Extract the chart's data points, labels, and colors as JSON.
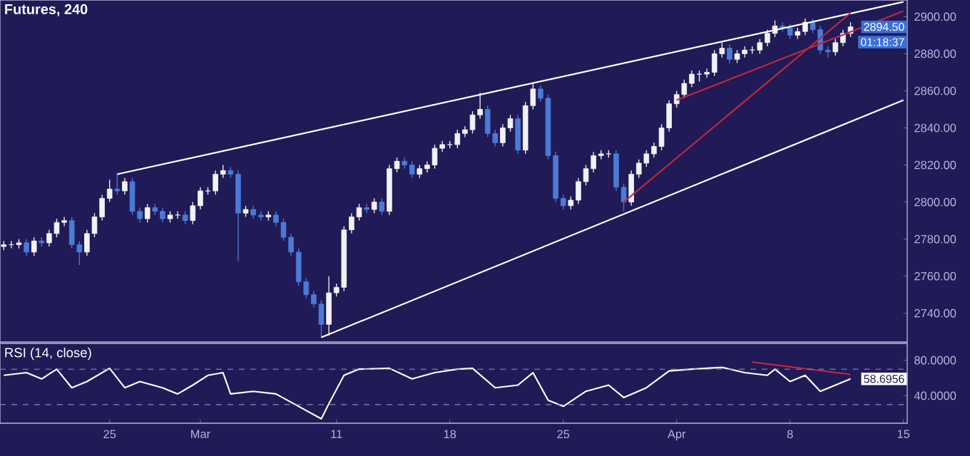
{
  "chart_data": [
    {
      "type": "candlestick",
      "title": "Futures, 240",
      "categories": [
        null,
        null,
        null,
        null,
        null,
        null,
        null,
        null,
        null,
        null,
        null,
        null,
        null,
        null,
        null,
        null,
        null,
        null,
        null,
        null,
        null,
        null,
        null,
        null,
        null,
        null,
        null,
        null,
        null,
        null,
        null,
        null,
        null,
        null,
        null,
        null,
        null,
        null,
        null,
        null,
        null,
        null,
        null,
        null,
        null,
        null,
        null,
        null,
        null,
        null,
        null,
        null,
        null,
        null,
        null,
        null,
        null,
        null,
        null,
        null,
        null,
        null,
        null,
        null,
        null,
        null,
        null,
        null,
        null,
        null,
        null,
        null,
        null,
        null,
        null,
        null,
        null,
        null,
        null,
        null,
        null,
        null,
        null,
        null,
        null,
        null,
        null,
        null,
        null,
        null,
        null,
        null,
        null,
        null,
        null,
        null,
        null,
        null,
        null,
        null,
        null,
        null,
        null,
        null,
        null,
        null,
        null,
        null,
        null,
        null,
        null,
        null,
        null,
        null,
        null,
        null,
        null,
        null,
        null,
        null
      ],
      "ohlc": [
        [
          2776,
          2779,
          2774,
          2777
        ],
        [
          2777,
          2779,
          2775,
          2777
        ],
        [
          2777,
          2780,
          2775,
          2778
        ],
        [
          2778,
          2780,
          2771,
          2773
        ],
        [
          2773,
          2781,
          2771,
          2779
        ],
        [
          2779,
          2781,
          2776,
          2778
        ],
        [
          2778,
          2785,
          2776,
          2783
        ],
        [
          2783,
          2791,
          2781,
          2789
        ],
        [
          2789,
          2792,
          2787,
          2790
        ],
        [
          2790,
          2792,
          2775,
          2777
        ],
        [
          2777,
          2779,
          2766,
          2773
        ],
        [
          2773,
          2785,
          2771,
          2783
        ],
        [
          2783,
          2794,
          2781,
          2792
        ],
        [
          2792,
          2804,
          2790,
          2802
        ],
        [
          2802,
          2812,
          2800,
          2807
        ],
        [
          2807,
          2815,
          2804,
          2806
        ],
        [
          2806,
          2813,
          2804,
          2811
        ],
        [
          2811,
          2813,
          2793,
          2795
        ],
        [
          2795,
          2797,
          2789,
          2791
        ],
        [
          2791,
          2799,
          2789,
          2797
        ],
        [
          2797,
          2799,
          2793,
          2795
        ],
        [
          2795,
          2797,
          2789,
          2791
        ],
        [
          2791,
          2795,
          2789,
          2793
        ],
        [
          2793,
          2795,
          2791,
          2793
        ],
        [
          2793,
          2795,
          2788,
          2790
        ],
        [
          2790,
          2800,
          2788,
          2798
        ],
        [
          2798,
          2808,
          2796,
          2806
        ],
        [
          2806,
          2808,
          2804,
          2806
        ],
        [
          2806,
          2817,
          2804,
          2815
        ],
        [
          2815,
          2820,
          2813,
          2817
        ],
        [
          2817,
          2819,
          2813,
          2815
        ],
        [
          2815,
          2817,
          2768,
          2794
        ],
        [
          2794,
          2798,
          2792,
          2796
        ],
        [
          2796,
          2798,
          2791,
          2793
        ],
        [
          2793,
          2795,
          2790,
          2792
        ],
        [
          2792,
          2795,
          2790,
          2793
        ],
        [
          2793,
          2795,
          2787,
          2789
        ],
        [
          2789,
          2791,
          2779,
          2781
        ],
        [
          2781,
          2783,
          2771,
          2773
        ],
        [
          2773,
          2775,
          2755,
          2757
        ],
        [
          2757,
          2759,
          2748,
          2750
        ],
        [
          2750,
          2752,
          2743,
          2745
        ],
        [
          2745,
          2747,
          2727,
          2734
        ],
        [
          2734,
          2760,
          2728,
          2751
        ],
        [
          2751,
          2756,
          2749,
          2754
        ],
        [
          2754,
          2787,
          2752,
          2785
        ],
        [
          2785,
          2794,
          2783,
          2792
        ],
        [
          2792,
          2799,
          2790,
          2797
        ],
        [
          2797,
          2799,
          2794,
          2796
        ],
        [
          2796,
          2802,
          2794,
          2800
        ],
        [
          2800,
          2802,
          2793,
          2795
        ],
        [
          2795,
          2820,
          2793,
          2818
        ],
        [
          2818,
          2824,
          2816,
          2822
        ],
        [
          2822,
          2824,
          2818,
          2820
        ],
        [
          2820,
          2822,
          2813,
          2815
        ],
        [
          2815,
          2820,
          2813,
          2818
        ],
        [
          2818,
          2822,
          2816,
          2820
        ],
        [
          2820,
          2831,
          2818,
          2829
        ],
        [
          2829,
          2833,
          2827,
          2831
        ],
        [
          2831,
          2833,
          2829,
          2831
        ],
        [
          2831,
          2839,
          2829,
          2837
        ],
        [
          2837,
          2841,
          2835,
          2839
        ],
        [
          2839,
          2849,
          2837,
          2847
        ],
        [
          2847,
          2859,
          2845,
          2850
        ],
        [
          2850,
          2852,
          2835,
          2837
        ],
        [
          2837,
          2839,
          2830,
          2832
        ],
        [
          2832,
          2842,
          2830,
          2840
        ],
        [
          2840,
          2847,
          2838,
          2845
        ],
        [
          2845,
          2847,
          2826,
          2828
        ],
        [
          2828,
          2854,
          2826,
          2852
        ],
        [
          2852,
          2864,
          2850,
          2861
        ],
        [
          2861,
          2863,
          2854,
          2856
        ],
        [
          2856,
          2858,
          2823,
          2825
        ],
        [
          2825,
          2827,
          2800,
          2802
        ],
        [
          2802,
          2804,
          2796,
          2798
        ],
        [
          2798,
          2803,
          2796,
          2801
        ],
        [
          2801,
          2813,
          2799,
          2811
        ],
        [
          2811,
          2820,
          2809,
          2818
        ],
        [
          2818,
          2827,
          2816,
          2825
        ],
        [
          2825,
          2828,
          2823,
          2826
        ],
        [
          2826,
          2828,
          2824,
          2826
        ],
        [
          2826,
          2828,
          2806,
          2808
        ],
        [
          2808,
          2810,
          2795,
          2800
        ],
        [
          2800,
          2817,
          2798,
          2815
        ],
        [
          2815,
          2823,
          2813,
          2821
        ],
        [
          2821,
          2828,
          2819,
          2826
        ],
        [
          2826,
          2832,
          2824,
          2830
        ],
        [
          2830,
          2842,
          2828,
          2840
        ],
        [
          2840,
          2855,
          2838,
          2853
        ],
        [
          2853,
          2860,
          2851,
          2858
        ],
        [
          2858,
          2866,
          2856,
          2864
        ],
        [
          2864,
          2871,
          2862,
          2869
        ],
        [
          2869,
          2871,
          2865,
          2869
        ],
        [
          2869,
          2872,
          2867,
          2870
        ],
        [
          2870,
          2882,
          2868,
          2880
        ],
        [
          2880,
          2886,
          2878,
          2883
        ],
        [
          2883,
          2885,
          2875,
          2877
        ],
        [
          2877,
          2882,
          2875,
          2880
        ],
        [
          2880,
          2884,
          2878,
          2882
        ],
        [
          2882,
          2884,
          2880,
          2882
        ],
        [
          2882,
          2888,
          2880,
          2886
        ],
        [
          2886,
          2893,
          2884,
          2891
        ],
        [
          2891,
          2898,
          2889,
          2895
        ],
        [
          2895,
          2897,
          2892,
          2894
        ],
        [
          2894,
          2896,
          2888,
          2890
        ],
        [
          2890,
          2894,
          2888,
          2892
        ],
        [
          2892,
          2899,
          2890,
          2897
        ],
        [
          2897,
          2899,
          2891,
          2893
        ],
        [
          2893,
          2895,
          2880,
          2882
        ],
        [
          2882,
          2884,
          2878,
          2881
        ],
        [
          2881,
          2888,
          2879,
          2886
        ],
        [
          2886,
          2893,
          2884,
          2891
        ],
        [
          2891,
          2897,
          2889,
          2894.5
        ],
        null,
        null,
        null,
        null,
        null,
        null,
        null
      ],
      "series": [
        {
          "type": "line",
          "color": "#ffffff",
          "values": [
            null,
            null,
            null,
            null,
            null,
            null,
            null,
            null,
            null,
            null,
            null,
            null,
            null,
            null,
            null,
            2815,
            null,
            null,
            null,
            null,
            null,
            null,
            null,
            null,
            null,
            null,
            null,
            null,
            null,
            null,
            null,
            null,
            null,
            null,
            null,
            null,
            null,
            null,
            null,
            null,
            null,
            null,
            null,
            null,
            null,
            null,
            null,
            null,
            null,
            null,
            null,
            null,
            null,
            null,
            null,
            null,
            null,
            null,
            null,
            null,
            null,
            null,
            null,
            null,
            null,
            null,
            null,
            null,
            null,
            null,
            null,
            null,
            null,
            null,
            null,
            null,
            null,
            null,
            null,
            null,
            null,
            null,
            null,
            null,
            null,
            null,
            null,
            null,
            null,
            null,
            null,
            null,
            null,
            null,
            null,
            null,
            null,
            null,
            null,
            null,
            null,
            null,
            null,
            null,
            null,
            null,
            null,
            null,
            null,
            null,
            null,
            null,
            null,
            null,
            null,
            null,
            null,
            null,
            null,
            2908
          ]
        },
        {
          "type": "line",
          "color": "#ffffff",
          "values": [
            null,
            null,
            null,
            null,
            null,
            null,
            null,
            null,
            null,
            null,
            null,
            null,
            null,
            null,
            null,
            null,
            null,
            null,
            null,
            null,
            null,
            null,
            null,
            null,
            null,
            null,
            null,
            null,
            null,
            null,
            null,
            null,
            null,
            null,
            null,
            null,
            null,
            null,
            null,
            null,
            null,
            null,
            2727,
            null,
            null,
            null,
            null,
            null,
            null,
            null,
            null,
            null,
            null,
            null,
            null,
            null,
            null,
            null,
            null,
            null,
            null,
            null,
            null,
            null,
            null,
            null,
            null,
            null,
            null,
            null,
            null,
            null,
            null,
            null,
            null,
            null,
            null,
            null,
            null,
            null,
            null,
            null,
            null,
            null,
            null,
            null,
            null,
            null,
            null,
            null,
            null,
            null,
            null,
            null,
            null,
            null,
            null,
            null,
            null,
            null,
            null,
            null,
            null,
            null,
            null,
            null,
            null,
            null,
            null,
            null,
            null,
            null,
            null,
            null,
            null,
            null,
            null,
            null,
            null,
            2855
          ]
        },
        {
          "type": "line",
          "color": "#c0283c",
          "values": [
            null,
            null,
            null,
            null,
            null,
            null,
            null,
            null,
            null,
            null,
            null,
            null,
            null,
            null,
            null,
            null,
            null,
            null,
            null,
            null,
            null,
            null,
            null,
            null,
            null,
            null,
            null,
            null,
            null,
            null,
            null,
            null,
            null,
            null,
            null,
            null,
            null,
            null,
            null,
            null,
            null,
            null,
            null,
            null,
            null,
            null,
            null,
            null,
            null,
            null,
            null,
            null,
            null,
            null,
            null,
            null,
            null,
            null,
            null,
            null,
            null,
            null,
            null,
            null,
            null,
            null,
            null,
            null,
            null,
            null,
            null,
            null,
            null,
            null,
            null,
            null,
            null,
            null,
            null,
            null,
            null,
            null,
            null,
            null,
            null,
            null,
            null,
            null,
            null,
            2855,
            null,
            null,
            null,
            null,
            null,
            null,
            null,
            null,
            null,
            null,
            null,
            null,
            null,
            null,
            null,
            null,
            null,
            null,
            null,
            null,
            null,
            null,
            null,
            null,
            null,
            null,
            null,
            null,
            null,
            2903
          ]
        },
        {
          "type": "line",
          "color": "#c0283c",
          "values": [
            null,
            null,
            null,
            null,
            null,
            null,
            null,
            null,
            null,
            null,
            null,
            null,
            null,
            null,
            null,
            null,
            null,
            null,
            null,
            null,
            null,
            null,
            null,
            null,
            null,
            null,
            null,
            null,
            null,
            null,
            null,
            null,
            null,
            null,
            null,
            null,
            null,
            null,
            null,
            null,
            null,
            null,
            null,
            null,
            null,
            null,
            null,
            null,
            null,
            null,
            null,
            null,
            null,
            null,
            null,
            null,
            null,
            null,
            null,
            null,
            null,
            null,
            null,
            null,
            null,
            null,
            null,
            null,
            null,
            null,
            null,
            null,
            null,
            null,
            null,
            null,
            null,
            null,
            null,
            null,
            null,
            null,
            2800,
            null,
            null,
            null,
            null,
            null,
            null,
            null,
            null,
            null,
            null,
            null,
            null,
            null,
            null,
            null,
            null,
            null,
            null,
            null,
            null,
            null,
            null,
            null,
            null,
            null,
            null,
            null,
            null,
            null,
            2902,
            null,
            null,
            null,
            null,
            null,
            null,
            null
          ]
        }
      ],
      "ylim": [
        2724.5,
        2909
      ],
      "yticks": [
        {
          "value": 2740,
          "label": "2740.00"
        },
        {
          "value": 2760,
          "label": "2760.00"
        },
        {
          "value": 2780,
          "label": "2780.00"
        },
        {
          "value": 2800,
          "label": "2800.00"
        },
        {
          "value": 2820,
          "label": "2820.00"
        },
        {
          "value": 2840,
          "label": "2840.00"
        },
        {
          "value": 2860,
          "label": "2860.00"
        },
        {
          "value": 2880,
          "label": "2880.00"
        },
        {
          "value": 2900,
          "label": "2900.00"
        }
      ],
      "annotations": [
        {
          "text": "2894.50",
          "y": 2894.5
        },
        "01:18:37"
      ],
      "tick_labels": "y"
    },
    {
      "type": "line",
      "title": "RSI (14, close)",
      "categories": [
        null,
        null,
        null,
        null,
        null,
        null,
        null,
        null,
        null,
        null,
        null,
        null,
        null,
        null,
        "25",
        null,
        null,
        null,
        null,
        null,
        null,
        null,
        null,
        null,
        null,
        null,
        "Mar",
        null,
        null,
        null,
        null,
        null,
        null,
        null,
        null,
        null,
        null,
        null,
        null,
        null,
        null,
        null,
        null,
        null,
        "11",
        null,
        null,
        null,
        null,
        null,
        null,
        null,
        null,
        null,
        null,
        null,
        null,
        null,
        null,
        "18",
        null,
        null,
        null,
        null,
        null,
        null,
        null,
        null,
        null,
        null,
        null,
        null,
        null,
        null,
        "25",
        null,
        null,
        null,
        null,
        null,
        null,
        null,
        null,
        null,
        null,
        null,
        null,
        null,
        null,
        "Apr",
        null,
        null,
        null,
        null,
        null,
        null,
        null,
        null,
        null,
        null,
        null,
        null,
        null,
        null,
        "8",
        null,
        null,
        null,
        null,
        null,
        null,
        null,
        null,
        null,
        null,
        null,
        null,
        null,
        null,
        "15"
      ],
      "series": [
        {
          "color": "#ffffff",
          "values": [
            63,
            null,
            null,
            66,
            null,
            59,
            null,
            70,
            null,
            49,
            null,
            56,
            null,
            null,
            71,
            null,
            49,
            null,
            56,
            null,
            null,
            49,
            null,
            42,
            null,
            52,
            null,
            63,
            null,
            66,
            42,
            null,
            null,
            45,
            null,
            null,
            42,
            null,
            null,
            28,
            null,
            null,
            14,
            31,
            null,
            63,
            null,
            70,
            null,
            null,
            null,
            71,
            null,
            null,
            59,
            null,
            null,
            66,
            null,
            null,
            70,
            null,
            71,
            null,
            null,
            49,
            null,
            null,
            52,
            null,
            66,
            null,
            35,
            null,
            28,
            null,
            null,
            45,
            null,
            null,
            52,
            null,
            38,
            null,
            null,
            49,
            null,
            null,
            68,
            null,
            null,
            70,
            null,
            null,
            null,
            72,
            null,
            null,
            66,
            null,
            null,
            63,
            70,
            null,
            56,
            null,
            63,
            null,
            45,
            null,
            52,
            null,
            59,
            null,
            null,
            null,
            null,
            null,
            null,
            null
          ]
        },
        {
          "color": "#c0283c",
          "values": [
            null,
            null,
            null,
            null,
            null,
            null,
            null,
            null,
            null,
            null,
            null,
            null,
            null,
            null,
            null,
            null,
            null,
            null,
            null,
            null,
            null,
            null,
            null,
            null,
            null,
            null,
            null,
            null,
            null,
            null,
            null,
            null,
            null,
            null,
            null,
            null,
            null,
            null,
            null,
            null,
            null,
            null,
            null,
            null,
            null,
            null,
            null,
            null,
            null,
            null,
            null,
            null,
            null,
            null,
            null,
            null,
            null,
            null,
            null,
            null,
            null,
            null,
            null,
            null,
            null,
            null,
            null,
            null,
            null,
            null,
            null,
            null,
            null,
            null,
            null,
            null,
            null,
            null,
            null,
            null,
            null,
            null,
            null,
            null,
            null,
            null,
            null,
            null,
            null,
            null,
            null,
            null,
            null,
            null,
            null,
            null,
            null,
            null,
            null,
            78,
            null,
            null,
            null,
            null,
            null,
            null,
            null,
            null,
            null,
            null,
            null,
            null,
            64,
            null,
            null,
            null,
            null,
            null,
            null,
            null
          ]
        }
      ],
      "ylim": [
        9,
        99
      ],
      "yticks": [
        {
          "value": 40,
          "label": "40.0000"
        },
        {
          "value": 80,
          "label": "80.0000"
        }
      ],
      "ref_lines": [
        {
          "axis": "y",
          "value": 70,
          "line_style": "dashed",
          "color": "#8c88b8"
        },
        {
          "axis": "y",
          "value": 30,
          "line_style": "dashed",
          "color": "#8c88b8"
        }
      ],
      "annotations": [
        "58.6956"
      ]
    }
  ]
}
